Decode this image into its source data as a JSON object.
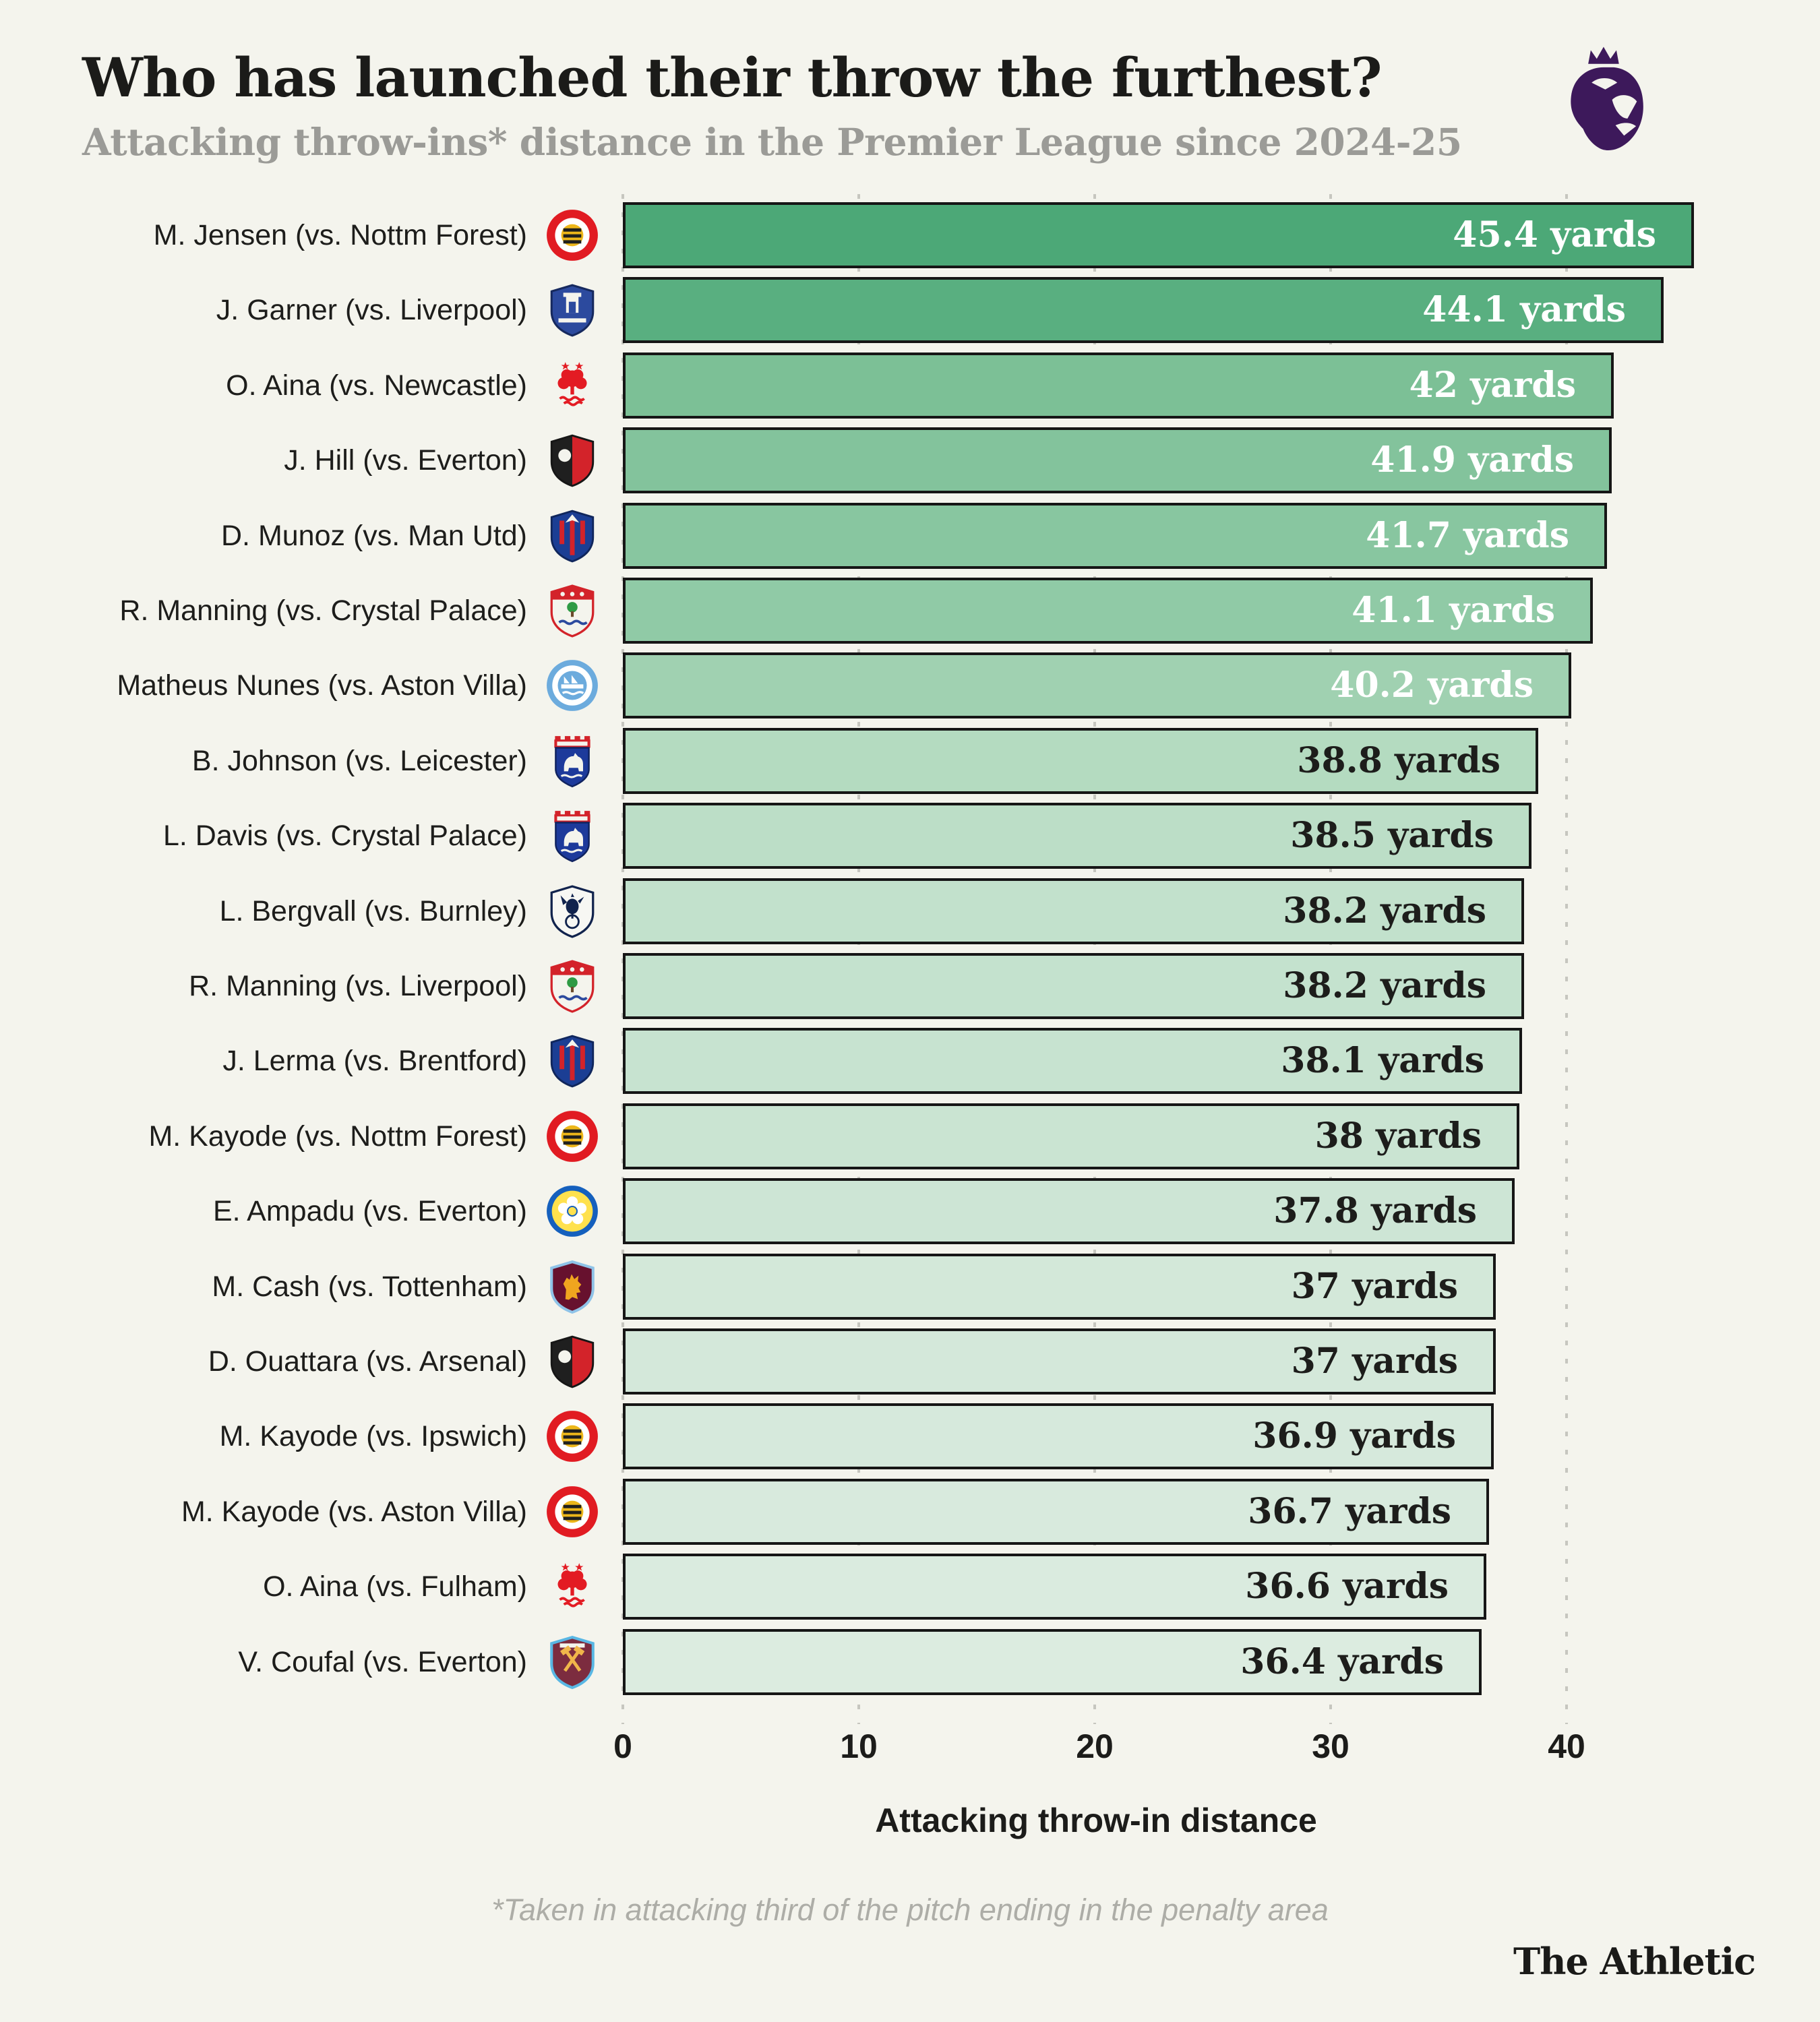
{
  "header": {
    "title": "Who has launched their throw the furthest?",
    "subtitle": "Attacking throw-ins* distance in the Premier League since 2024-25",
    "logo": "premier-league-lion"
  },
  "footnote": "*Taken in attacking third of the pitch ending in the penalty area",
  "brand": "The Athletic",
  "colors": {
    "background": "#f4f4ed",
    "bar_border": "#161616",
    "title_text": "#1b1b19",
    "subtitle_text": "#9b9b97",
    "gridline": "#c6c6bf",
    "footnote_text": "#adada7",
    "premier_league_purple": "#3d195b"
  },
  "chart_data": {
    "type": "bar",
    "orientation": "horizontal",
    "title": "Who has launched their throw the furthest?",
    "subtitle": "Attacking throw-ins* distance in the Premier League since 2024-25",
    "xlabel": "Attacking throw-in distance",
    "unit": "yards",
    "x_ticks": [
      0,
      10,
      20,
      30,
      40
    ],
    "xlim": [
      0,
      46.5
    ],
    "grid": "dotted-vertical",
    "legend": "none",
    "rows": [
      {
        "label": "M. Jensen (vs. Nottm Forest)",
        "team": "brentford",
        "value": 45.4,
        "value_label": "45.4 yards",
        "bar_color": "#4ca877",
        "value_text_color": "#ffffff"
      },
      {
        "label": "J. Garner (vs. Liverpool)",
        "team": "everton",
        "value": 44.1,
        "value_label": "44.1 yards",
        "bar_color": "#59af80",
        "value_text_color": "#ffffff"
      },
      {
        "label": "O. Aina (vs. Newcastle)",
        "team": "nottm-forest",
        "value": 42,
        "value_label": "42 yards",
        "bar_color": "#7cc096",
        "value_text_color": "#ffffff"
      },
      {
        "label": "J. Hill (vs. Everton)",
        "team": "bournemouth",
        "value": 41.9,
        "value_label": "41.9 yards",
        "bar_color": "#83c39c",
        "value_text_color": "#ffffff"
      },
      {
        "label": "D. Munoz (vs. Man Utd)",
        "team": "crystal-palace",
        "value": 41.7,
        "value_label": "41.7 yards",
        "bar_color": "#88c6a0",
        "value_text_color": "#ffffff"
      },
      {
        "label": "R. Manning (vs. Crystal Palace)",
        "team": "southampton",
        "value": 41.1,
        "value_label": "41.1 yards",
        "bar_color": "#90caa6",
        "value_text_color": "#ffffff"
      },
      {
        "label": "Matheus Nunes (vs. Aston Villa)",
        "team": "man-city",
        "value": 40.2,
        "value_label": "40.2 yards",
        "bar_color": "#a0d1b1",
        "value_text_color": "#ffffff"
      },
      {
        "label": "B. Johnson (vs. Leicester)",
        "team": "ipswich",
        "value": 38.8,
        "value_label": "38.8 yards",
        "bar_color": "#b4dbc0",
        "value_text_color": "#1d1d1b"
      },
      {
        "label": "L. Davis (vs. Crystal Palace)",
        "team": "ipswich",
        "value": 38.5,
        "value_label": "38.5 yards",
        "bar_color": "#bcdec7",
        "value_text_color": "#1d1d1b"
      },
      {
        "label": "L. Bergvall (vs. Burnley)",
        "team": "tottenham",
        "value": 38.2,
        "value_label": "38.2 yards",
        "bar_color": "#c2e1cc",
        "value_text_color": "#1d1d1b"
      },
      {
        "label": "R. Manning (vs. Liverpool)",
        "team": "southampton",
        "value": 38.2,
        "value_label": "38.2 yards",
        "bar_color": "#c4e2ce",
        "value_text_color": "#1d1d1b"
      },
      {
        "label": "J. Lerma (vs. Brentford)",
        "team": "crystal-palace",
        "value": 38.1,
        "value_label": "38.1 yards",
        "bar_color": "#c7e3d0",
        "value_text_color": "#1d1d1b"
      },
      {
        "label": "M. Kayode (vs. Nottm Forest)",
        "team": "brentford",
        "value": 38,
        "value_label": "38 yards",
        "bar_color": "#cae4d2",
        "value_text_color": "#1d1d1b"
      },
      {
        "label": "E. Ampadu (vs. Everton)",
        "team": "leeds",
        "value": 37.8,
        "value_label": "37.8 yards",
        "bar_color": "#cde5d5",
        "value_text_color": "#1d1d1b"
      },
      {
        "label": "M. Cash (vs. Tottenham)",
        "team": "aston-villa",
        "value": 37,
        "value_label": "37 yards",
        "bar_color": "#d3e8d9",
        "value_text_color": "#1d1d1b"
      },
      {
        "label": "D. Ouattara (vs. Arsenal)",
        "team": "bournemouth",
        "value": 37,
        "value_label": "37 yards",
        "bar_color": "#d4e8da",
        "value_text_color": "#1d1d1b"
      },
      {
        "label": "M. Kayode (vs. Ipswich)",
        "team": "brentford",
        "value": 36.9,
        "value_label": "36.9 yards",
        "bar_color": "#d6e9dc",
        "value_text_color": "#1d1d1b"
      },
      {
        "label": "M. Kayode (vs. Aston Villa)",
        "team": "brentford",
        "value": 36.7,
        "value_label": "36.7 yards",
        "bar_color": "#d8eadd",
        "value_text_color": "#1d1d1b"
      },
      {
        "label": "O. Aina (vs. Fulham)",
        "team": "nottm-forest",
        "value": 36.6,
        "value_label": "36.6 yards",
        "bar_color": "#daebdf",
        "value_text_color": "#1d1d1b"
      },
      {
        "label": "V. Coufal (vs. Everton)",
        "team": "west-ham",
        "value": 36.4,
        "value_label": "36.4 yards",
        "bar_color": "#dcece0",
        "value_text_color": "#1d1d1b"
      }
    ]
  }
}
